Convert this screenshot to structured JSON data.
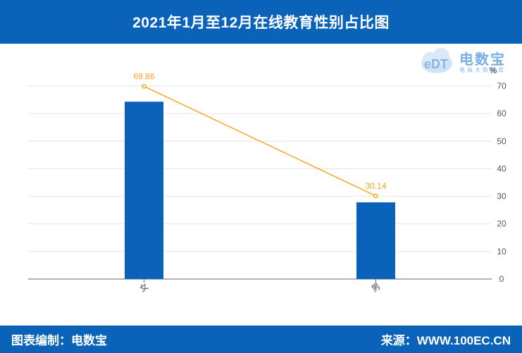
{
  "header": {
    "title": "2021年1月至12月在线教育性别占比图"
  },
  "footer": {
    "left": "图表编制：电数宝",
    "right": "来源：WWW.100EC.CN"
  },
  "logo": {
    "text": "电数宝",
    "sub": "电商大数据库",
    "mark": "eDT",
    "icon": "cloud-logo-icon"
  },
  "colors": {
    "bar": "#0a63b8",
    "line": "#f5a623",
    "header": "#0a63b8"
  },
  "chart_data": {
    "type": "bar",
    "categories": [
      "女",
      "男"
    ],
    "series": [
      {
        "kind": "bar",
        "values": [
          64.3,
          27.8
        ]
      },
      {
        "kind": "line",
        "values": [
          69.86,
          30.14
        ],
        "labels": [
          "69.86",
          "30.14"
        ]
      }
    ],
    "ylabel": "%",
    "ylim": [
      0,
      70
    ],
    "yticks": [
      0,
      10,
      20,
      30,
      40,
      50,
      60,
      70
    ],
    "grid": true,
    "axis_side": "right"
  }
}
